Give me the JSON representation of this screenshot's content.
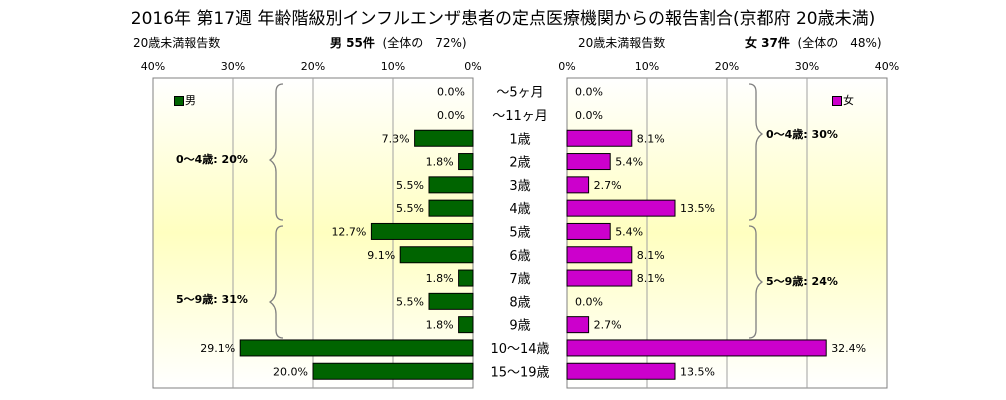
{
  "title": "2016年 第17週 年齢階級別インフルエンザ患者の定点医療機関からの報告割合(京都府 20歳未満)",
  "male_header": {
    "left_label": "20歳未満報告数",
    "name": "男 55件",
    "note": "(全体の　72%)"
  },
  "female_header": {
    "left_label": "20歳未満報告数",
    "name": "女 37件",
    "note": "(全体の　48%)"
  },
  "male_ticks": [
    "40%",
    "30%",
    "20%",
    "10%",
    "0%"
  ],
  "female_ticks": [
    "0%",
    "10%",
    "20%",
    "30%",
    "40%"
  ],
  "male_legend": "男",
  "female_legend": "女",
  "male_groups": [
    "0～4歳: 20%",
    "5～9歳: 31%"
  ],
  "female_groups": [
    "0～4歳: 30%",
    "5～9歳: 24%"
  ],
  "colors": {
    "male": "#006400",
    "female": "#cc00cc",
    "gradient_mid": "#ffffc0"
  },
  "chart_data": {
    "type": "bar",
    "categories": [
      "～5ヶ月",
      "～11ヶ月",
      "1歳",
      "2歳",
      "3歳",
      "4歳",
      "5歳",
      "6歳",
      "7歳",
      "8歳",
      "9歳",
      "10～14歳",
      "15～19歳"
    ],
    "series": [
      {
        "name": "男",
        "values": [
          0.0,
          0.0,
          7.3,
          1.8,
          5.5,
          5.5,
          12.7,
          9.1,
          1.8,
          5.5,
          1.8,
          29.1,
          20.0
        ],
        "labels": [
          "0.0%",
          "0.0%",
          "7.3%",
          "1.8%",
          "5.5%",
          "5.5%",
          "12.7%",
          "9.1%",
          "1.8%",
          "5.5%",
          "1.8%",
          "29.1%",
          "20.0%"
        ]
      },
      {
        "name": "女",
        "values": [
          0.0,
          0.0,
          8.1,
          5.4,
          2.7,
          13.5,
          5.4,
          8.1,
          8.1,
          0.0,
          2.7,
          32.4,
          13.5
        ],
        "labels": [
          "0.0%",
          "0.0%",
          "8.1%",
          "5.4%",
          "2.7%",
          "13.5%",
          "5.4%",
          "8.1%",
          "8.1%",
          "0.0%",
          "2.7%",
          "32.4%",
          "13.5%"
        ]
      }
    ],
    "xlim": [
      0,
      40
    ],
    "grid": true
  }
}
